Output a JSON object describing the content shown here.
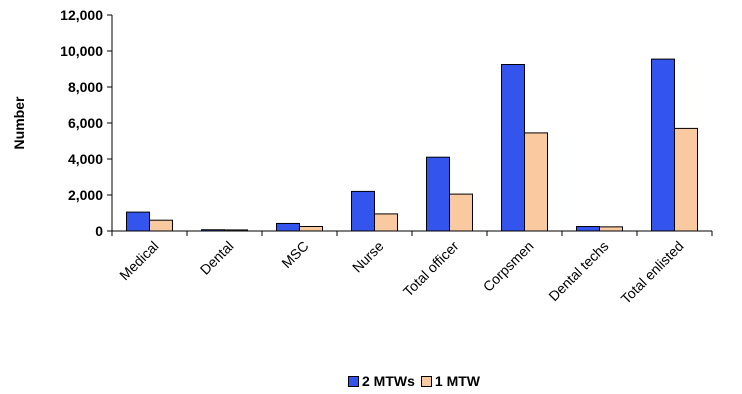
{
  "chart_data": {
    "type": "bar",
    "title": "",
    "xlabel": "",
    "ylabel": "Number",
    "ylim": [
      0,
      12000
    ],
    "yticks": [
      0,
      2000,
      4000,
      6000,
      8000,
      10000,
      12000
    ],
    "ytick_labels": [
      "0",
      "2,000",
      "4,000",
      "6,000",
      "8,000",
      "10,000",
      "12,000"
    ],
    "categories": [
      "Medical",
      "Dental",
      "MSC",
      "Nurse",
      "Total officer",
      "Corpsmen",
      "Dental techs",
      "Total enlisted"
    ],
    "series": [
      {
        "name": "2 MTWs",
        "color": "#3355ee",
        "values": [
          1050,
          70,
          420,
          2200,
          4100,
          9250,
          250,
          9550
        ]
      },
      {
        "name": "1 MTW",
        "color": "#f9c9a0",
        "values": [
          600,
          60,
          250,
          950,
          2050,
          5450,
          230,
          5700
        ]
      }
    ],
    "grid": false,
    "legend_position": "bottom"
  }
}
